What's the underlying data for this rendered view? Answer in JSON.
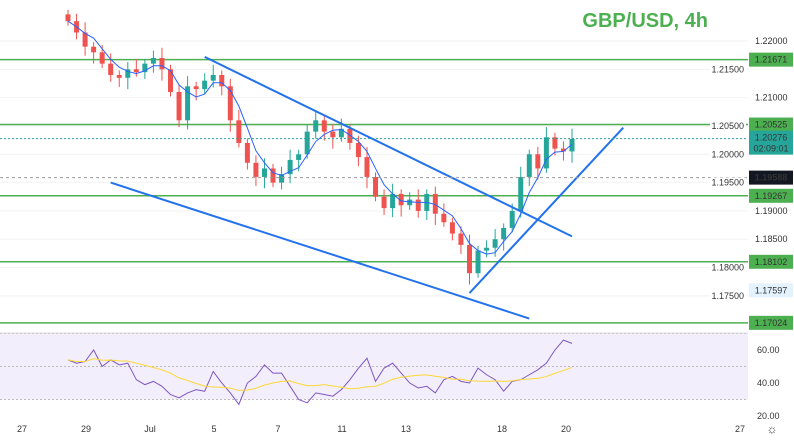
{
  "chart_data": {
    "type": "candlestick",
    "title": "GBP/USD, 4h",
    "price_ticks": [
      1.22,
      1.215,
      1.21,
      1.205,
      1.2,
      1.195,
      1.19,
      1.185,
      1.18,
      1.175
    ],
    "ylim": [
      1.168,
      1.2255
    ],
    "x_tick_labels": [
      "27",
      "29",
      "Jul",
      "5",
      "7",
      "11",
      "13",
      "18",
      "20",
      "27"
    ],
    "horizontal_levels": [
      1.21671,
      1.20525,
      1.19267,
      1.18102,
      1.17024
    ],
    "current_price": "1.20276",
    "countdown": "02:09:01",
    "crosshair_price": "1.19588",
    "low_marker_price": "1.17597",
    "closes": [
      1.2235,
      1.2215,
      1.219,
      1.218,
      1.216,
      1.214,
      1.2135,
      1.215,
      1.2145,
      1.216,
      1.217,
      1.215,
      1.211,
      1.206,
      1.212,
      1.2115,
      1.213,
      1.214,
      1.212,
      1.206,
      1.202,
      1.1985,
      1.196,
      1.1975,
      1.195,
      1.1965,
      1.199,
      1.2,
      1.204,
      1.206,
      1.204,
      1.203,
      1.2045,
      1.202,
      1.1995,
      1.196,
      1.1925,
      1.1905,
      1.193,
      1.191,
      1.192,
      1.19,
      1.193,
      1.1895,
      1.188,
      1.186,
      1.184,
      1.179,
      1.183,
      1.1835,
      1.185,
      1.187,
      1.19,
      1.196,
      1.2,
      1.1975,
      1.203,
      1.201,
      1.2005,
      1.2027
    ],
    "trendlines": [
      {
        "from": [
          16,
          1.2172
        ],
        "to": [
          59,
          1.1855
        ]
      },
      {
        "from": [
          5,
          1.195
        ],
        "to": [
          54,
          1.171
        ]
      },
      {
        "from": [
          47,
          1.1755
        ],
        "to": [
          65,
          1.2047
        ]
      }
    ],
    "rsi": {
      "ticks": [
        60,
        40,
        20
      ],
      "band": [
        30,
        70
      ],
      "mid": 50,
      "values": [
        54,
        52,
        53,
        60,
        50,
        54,
        51,
        52,
        42,
        39,
        41,
        38,
        33,
        31,
        34,
        36,
        35,
        47,
        40,
        34,
        27,
        40,
        44,
        51,
        46,
        46,
        38,
        30,
        28,
        34,
        33,
        32,
        36,
        42,
        49,
        55,
        41,
        49,
        52,
        46,
        40,
        37,
        38,
        34,
        42,
        44,
        41,
        40,
        49,
        45,
        42,
        35,
        41,
        42,
        45,
        48,
        52,
        60,
        66,
        64
      ]
    },
    "colors": {
      "up": "#26a69a",
      "down": "#ef5350",
      "ma": "#2962ff",
      "levels": "#4caf50",
      "trend": "#2272ee",
      "rsi": "#7e57c2",
      "rsi_ma": "#fdd835"
    }
  }
}
